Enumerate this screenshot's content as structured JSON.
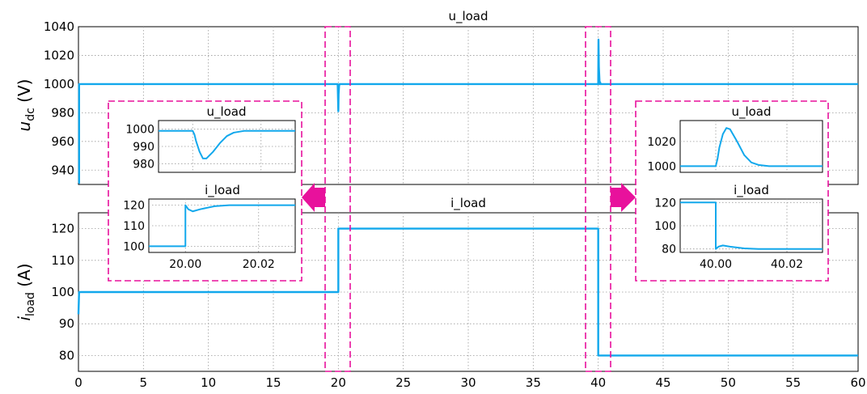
{
  "chart_data": [
    {
      "id": "udc",
      "type": "line",
      "title": "u_load",
      "ylabel_main": "u",
      "ylabel_sub": "dc",
      "ylabel_unit": " (V)",
      "xlim": [
        0,
        60
      ],
      "ylim": [
        930,
        1040
      ],
      "xticks": [
        0,
        5,
        10,
        15,
        20,
        25,
        30,
        35,
        40,
        45,
        50,
        55,
        60
      ],
      "xtick_labels": [],
      "yticks": [
        940,
        960,
        980,
        1000,
        1020,
        1040
      ],
      "ytick_labels": [
        "940",
        "960",
        "980",
        "1000",
        "1020",
        "1040"
      ],
      "grid": true,
      "color": "#12a8ec",
      "series": [
        {
          "x": [
            0,
            0.05,
            0.05,
            19.95,
            20.0,
            20.02,
            20.06,
            20.1,
            20.2,
            60
          ],
          "y": [
            931,
            931,
            1000,
            1000,
            981,
            993,
            999,
            1000,
            1000,
            1000
          ]
        },
        {
          "x": [
            40.0,
            40.02,
            40.05,
            40.1,
            40.2
          ],
          "y": [
            1000,
            1031,
            1012,
            1002,
            1000
          ]
        }
      ]
    },
    {
      "id": "iload",
      "type": "line",
      "title": "i_load",
      "ylabel_main": "i",
      "ylabel_sub": "load",
      "ylabel_unit": " (A)",
      "xlim": [
        0,
        60
      ],
      "ylim": [
        75,
        125
      ],
      "xticks": [
        0,
        5,
        10,
        15,
        20,
        25,
        30,
        35,
        40,
        45,
        50,
        55,
        60
      ],
      "xtick_labels": [
        "0",
        "5",
        "10",
        "15",
        "20",
        "25",
        "30",
        "35",
        "40",
        "45",
        "50",
        "55",
        "60"
      ],
      "yticks": [
        80,
        90,
        100,
        110,
        120
      ],
      "ytick_labels": [
        "80",
        "90",
        "100",
        "110",
        "120"
      ],
      "grid": true,
      "color": "#12a8ec",
      "series": [
        {
          "x": [
            0,
            0.05,
            0.08,
            20.0,
            20.0,
            40.0,
            40.0,
            60
          ],
          "y": [
            93,
            100,
            100,
            100,
            120,
            120,
            80,
            80
          ]
        }
      ]
    },
    {
      "id": "inset_u_20",
      "type": "line",
      "title": "u_load",
      "xlim": [
        19.99,
        20.03
      ],
      "ylim": [
        975,
        1005
      ],
      "yticks": [
        980,
        990,
        1000
      ],
      "ytick_labels": [
        "980",
        "990",
        "1000"
      ],
      "xticks": [
        20.0,
        20.02
      ],
      "xtick_labels": [],
      "grid": true,
      "color": "#12a8ec",
      "series": [
        {
          "x": [
            19.99,
            20.0,
            20.0005,
            20.001,
            20.002,
            20.003,
            20.004,
            20.006,
            20.008,
            20.01,
            20.012,
            20.015,
            20.03
          ],
          "y": [
            999,
            999,
            997,
            993,
            987,
            983,
            983,
            987,
            992,
            996,
            998,
            999,
            999
          ]
        }
      ]
    },
    {
      "id": "inset_i_20",
      "type": "line",
      "title": "i_load",
      "xlim": [
        19.99,
        20.03
      ],
      "ylim": [
        97,
        123
      ],
      "yticks": [
        100,
        110,
        120
      ],
      "ytick_labels": [
        "100",
        "110",
        "120"
      ],
      "xticks": [
        20.0,
        20.02
      ],
      "xtick_labels": [
        "20.00",
        "20.02"
      ],
      "grid": true,
      "color": "#12a8ec",
      "series": [
        {
          "x": [
            19.99,
            20.0,
            20.0,
            20.0008,
            20.002,
            20.004,
            20.008,
            20.012,
            20.03
          ],
          "y": [
            100,
            100,
            120,
            118,
            117,
            118,
            119.5,
            120,
            120
          ]
        }
      ]
    },
    {
      "id": "inset_u_40",
      "type": "line",
      "title": "u_load",
      "xlim": [
        39.99,
        40.03
      ],
      "ylim": [
        995,
        1037
      ],
      "yticks": [
        1000,
        1020
      ],
      "ytick_labels": [
        "1000",
        "1020"
      ],
      "xticks": [
        40.0,
        40.02
      ],
      "xtick_labels": [],
      "grid": true,
      "color": "#12a8ec",
      "series": [
        {
          "x": [
            39.99,
            40.0,
            40.0005,
            40.001,
            40.002,
            40.003,
            40.004,
            40.006,
            40.008,
            40.01,
            40.012,
            40.015,
            40.03
          ],
          "y": [
            1000,
            1000,
            1006,
            1015,
            1026,
            1031,
            1030,
            1020,
            1009,
            1003,
            1001,
            1000,
            1000
          ]
        }
      ]
    },
    {
      "id": "inset_i_40",
      "type": "line",
      "title": "i_load",
      "xlim": [
        39.99,
        40.03
      ],
      "ylim": [
        77,
        123
      ],
      "yticks": [
        80,
        100,
        120
      ],
      "ytick_labels": [
        "80",
        "100",
        "120"
      ],
      "xticks": [
        40.0,
        40.02
      ],
      "xtick_labels": [
        "40.00",
        "40.02"
      ],
      "grid": true,
      "color": "#12a8ec",
      "series": [
        {
          "x": [
            39.99,
            40.0,
            40.0,
            40.0008,
            40.002,
            40.004,
            40.008,
            40.012,
            40.03
          ],
          "y": [
            120,
            120,
            80,
            82,
            83,
            82,
            80.5,
            80,
            80
          ]
        }
      ]
    }
  ]
}
